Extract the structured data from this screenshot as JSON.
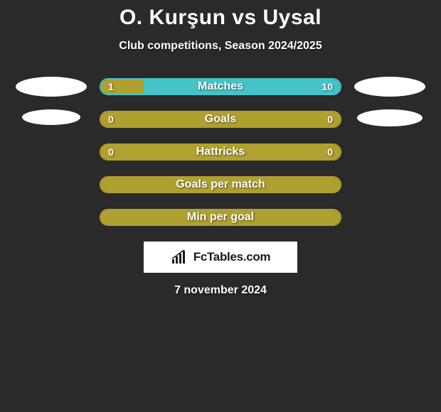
{
  "title": "O. Kurşun vs Uysal",
  "subtitle": "Club competitions, Season 2024/2025",
  "date": "7 november 2024",
  "logo_text": "FcTables.com",
  "colors": {
    "background": "#2a2a2a",
    "olive": "#b0a02f",
    "cyan": "#46c3c8",
    "white": "#ffffff",
    "text": "#ffffff"
  },
  "rows": [
    {
      "label": "Matches",
      "left_value": "1",
      "right_value": "10",
      "left_pct": 18,
      "right_pct": 82,
      "left_fill": "#b0a02f",
      "right_fill": "#46c3c8",
      "border_color": "#46c3c8",
      "show_left_ellipse": true,
      "show_right_ellipse": true,
      "ellipse_left_w": 100,
      "ellipse_left_h": 28,
      "ellipse_right_w": 100,
      "ellipse_right_h": 28,
      "show_values": true
    },
    {
      "label": "Goals",
      "left_value": "0",
      "right_value": "0",
      "left_pct": 100,
      "right_pct": 0,
      "left_fill": "#b0a02f",
      "right_fill": "#b0a02f",
      "border_color": "#b0a02f",
      "show_left_ellipse": true,
      "show_right_ellipse": true,
      "ellipse_left_w": 82,
      "ellipse_left_h": 22,
      "ellipse_right_w": 92,
      "ellipse_right_h": 24,
      "show_values": true
    },
    {
      "label": "Hattricks",
      "left_value": "0",
      "right_value": "0",
      "left_pct": 100,
      "right_pct": 0,
      "left_fill": "#b0a02f",
      "right_fill": "#b0a02f",
      "border_color": "#b0a02f",
      "show_left_ellipse": false,
      "show_right_ellipse": false,
      "show_values": true
    },
    {
      "label": "Goals per match",
      "left_value": "",
      "right_value": "",
      "left_pct": 100,
      "right_pct": 0,
      "left_fill": "#b0a02f",
      "right_fill": "#b0a02f",
      "border_color": "#b0a02f",
      "show_left_ellipse": false,
      "show_right_ellipse": false,
      "show_values": false
    },
    {
      "label": "Min per goal",
      "left_value": "",
      "right_value": "",
      "left_pct": 100,
      "right_pct": 0,
      "left_fill": "#b0a02f",
      "right_fill": "#b0a02f",
      "border_color": "#b0a02f",
      "show_left_ellipse": false,
      "show_right_ellipse": false,
      "show_values": false
    }
  ]
}
